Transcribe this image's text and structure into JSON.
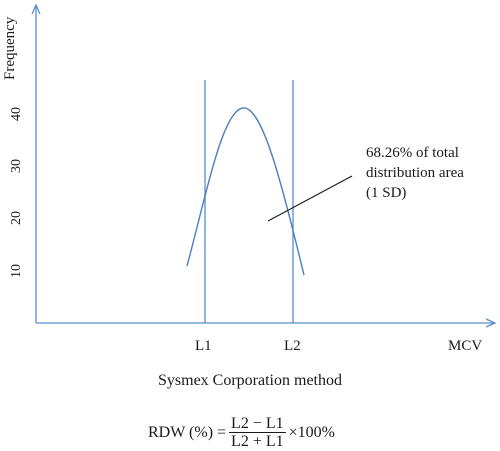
{
  "axes": {
    "y_title": "Frequency",
    "x_title": "MCV",
    "y_ticks": [
      "10",
      "20",
      "30",
      "40"
    ]
  },
  "markers": {
    "l1": "L1",
    "l2": "L2"
  },
  "annotation": {
    "line1": "68.26% of total",
    "line2": "distribution area",
    "line3": "(1 SD)"
  },
  "method_title": "Sysmex Corporation method",
  "formula": {
    "lhs": "RDW (%) =",
    "numerator": "L2 − L1",
    "denominator": "L2 + L1",
    "suffix": "×100%"
  },
  "colors": {
    "axis": "#5b8ccf",
    "curve": "#4a7fc1",
    "text": "#1a1a1a"
  }
}
